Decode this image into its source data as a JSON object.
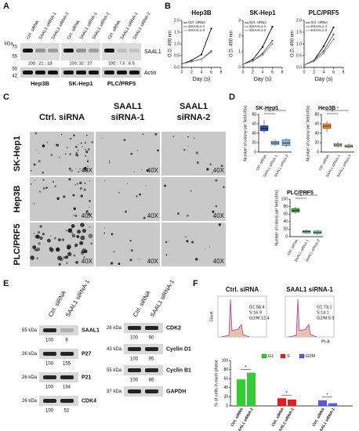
{
  "panels": {
    "A": {
      "label": "A",
      "kda": "kDa",
      "markers": [
        "70",
        "55",
        "50",
        "42"
      ],
      "lanes": [
        "Ctrl. siRNA",
        "SAAL1 siRNA-1",
        "SAAL1 siRNA-2"
      ],
      "cells": [
        "Hep3B",
        "SK-Hep1",
        "PLC/PRF5"
      ],
      "ratios": [
        "100 : 21 : 18",
        "100: 32 : 27",
        "100 : 7.6 : 6.5"
      ],
      "bands": [
        "SAAL1",
        "Actin"
      ]
    },
    "B": {
      "label": "B",
      "charts": [
        {
          "type": "line",
          "title": "Hep3B",
          "ylabel": "O.D. 490 nm",
          "xlabel": "Day (s)",
          "x": [
            0,
            2,
            4,
            6
          ],
          "xlim": [
            0,
            8
          ],
          "xticks": [
            0,
            2,
            4,
            6,
            8
          ],
          "ylim": [
            0,
            2
          ],
          "yticks": [
            {
              "value": 0,
              "label": "0.0"
            },
            {
              "value": 0.5,
              "label": "0.5"
            },
            {
              "value": 1,
              "label": "1.0"
            },
            {
              "value": 1.5,
              "label": "1.5"
            },
            {
              "value": 2,
              "label": "2.0"
            }
          ],
          "series": [
            {
              "name": "Ctrl. siRNA",
              "color": "#000000",
              "values": [
                0.15,
                0.3,
                0.55,
                1.65
              ]
            },
            {
              "name": "siSAAL1-1",
              "color": "#555555",
              "values": [
                0.15,
                0.25,
                0.35,
                0.7
              ]
            },
            {
              "name": "siSAAL1-2",
              "color": "#888888",
              "values": [
                0.15,
                0.25,
                0.35,
                0.65
              ]
            }
          ]
        },
        {
          "type": "line",
          "title": "SK-Hep1",
          "ylabel": "O.D. 490 nm",
          "xlabel": "Day (s)",
          "x": [
            0,
            2,
            4,
            6
          ],
          "xlim": [
            0,
            8
          ],
          "xticks": [
            0,
            2,
            4,
            6,
            8
          ],
          "ylim": [
            0,
            3
          ],
          "yticks": [
            0,
            1,
            2,
            3
          ],
          "series": [
            {
              "name": "Ctrl. siRNA",
              "color": "#000000",
              "values": [
                0.2,
                0.5,
                1.3,
                2.6
              ]
            },
            {
              "name": "siSAAL1-1",
              "color": "#555555",
              "values": [
                0.2,
                0.4,
                0.9,
                1.7
              ]
            },
            {
              "name": "siSAAL1-2",
              "color": "#888888",
              "values": [
                0.2,
                0.4,
                0.8,
                1.5
              ]
            }
          ]
        },
        {
          "type": "line",
          "title": "PLC/PRF5",
          "ylabel": "O.D. 490 nm",
          "xlabel": "Day (s)",
          "x": [
            0,
            2,
            4,
            6
          ],
          "xlim": [
            0,
            8
          ],
          "xticks": [
            0,
            2,
            4,
            6,
            8
          ],
          "ylim": [
            0,
            2
          ],
          "yticks": [
            {
              "value": 0,
              "label": "0.0"
            },
            {
              "value": 0.5,
              "label": "0.5"
            },
            {
              "value": 1,
              "label": "1.0"
            },
            {
              "value": 1.5,
              "label": "1.5"
            },
            {
              "value": 2,
              "label": "2.0"
            }
          ],
          "series": [
            {
              "name": "Ctrl. siRNA",
              "color": "#000000",
              "values": [
                0.1,
                0.3,
                0.9,
                1.7
              ]
            },
            {
              "name": "siSAAL1-1",
              "color": "#555555",
              "values": [
                0.1,
                0.3,
                0.7,
                1.4
              ]
            },
            {
              "name": "siSAAL1-2",
              "color": "#888888",
              "values": [
                0.1,
                0.25,
                0.6,
                1.2
              ]
            }
          ]
        }
      ]
    },
    "C": {
      "label": "C",
      "columns": [
        [
          "Ctrl. siRNA"
        ],
        [
          "SAAL1",
          "siRNA-1"
        ],
        [
          "SAAL1",
          "siRNA-2"
        ]
      ],
      "rows": [
        "SK-Hep1",
        "Hep3B",
        "PLC/PRF5"
      ],
      "magnification": "40X"
    },
    "D": {
      "label": "D",
      "charts": [
        {
          "type": "box",
          "title": "SK-Hep1",
          "ylabel": "Number of colony per field (40x)",
          "categories": [
            "Ctrl. siRNA",
            "SAAL1 siRNA-1",
            "SAAL1 siRNA-2"
          ],
          "colors": [
            "#2b4fb5",
            "#7db8e0",
            "#7db8e0"
          ],
          "ylim": [
            0,
            80
          ],
          "yticks": [
            0,
            20,
            40,
            60,
            80
          ],
          "sig": [
            "*",
            "*"
          ],
          "boxes": [
            {
              "min": 40,
              "q1": 45,
              "median": 50,
              "q3": 56,
              "max": 68
            },
            {
              "min": 12,
              "q1": 16,
              "median": 19,
              "q3": 23,
              "max": 26
            },
            {
              "min": 10,
              "q1": 14,
              "median": 19,
              "q3": 26,
              "max": 30
            }
          ]
        },
        {
          "type": "box",
          "title": "Hep3B",
          "ylabel": "Number of colony per field (40x)",
          "categories": [
            "Ctrl. siRNA",
            "SAAL1 siRNA-1",
            "SAAL1 siRNA-2"
          ],
          "colors": [
            "#f08a24",
            "#e3c9ad",
            "#e3c9ad"
          ],
          "ylim": [
            0,
            80
          ],
          "yticks": [
            0,
            20,
            40,
            60,
            80
          ],
          "sig": [
            "*",
            "*"
          ],
          "boxes": [
            {
              "min": 42,
              "q1": 50,
              "median": 55,
              "q3": 60,
              "max": 66
            },
            {
              "min": 9,
              "q1": 12,
              "median": 15,
              "q3": 18,
              "max": 22
            },
            {
              "min": 8,
              "q1": 10,
              "median": 12,
              "q3": 15,
              "max": 18
            }
          ]
        },
        {
          "type": "box",
          "title": "PLC/PRF5",
          "ylabel": "Number of colony per field (40x)",
          "categories": [
            "Ctrl. siRNA",
            "SAAL1 siRNA-1",
            "SAAL1 siRNA-2"
          ],
          "colors": [
            "#3cb43c",
            "#6ec9b5",
            "#6ec9b5"
          ],
          "ylim": [
            0,
            100
          ],
          "yticks": [
            0,
            20,
            40,
            60,
            80,
            100
          ],
          "sig": [
            "*",
            "*"
          ],
          "boxes": [
            {
              "min": 60,
              "q1": 65,
              "median": 70,
              "q3": 75,
              "max": 80
            },
            {
              "min": 8,
              "q1": 10,
              "median": 13,
              "q3": 16,
              "max": 19
            },
            {
              "min": 5,
              "q1": 8,
              "median": 11,
              "q3": 15,
              "max": 18
            }
          ]
        }
      ]
    },
    "E": {
      "label": "E",
      "lanes": [
        "Ctrl. siRNA",
        "SAAL1 siRNA-1"
      ],
      "left": [
        {
          "marker": "55 kDa",
          "protein": "SAAL1",
          "ratios": [
            100,
            6
          ]
        },
        {
          "marker": "26 kDa",
          "protein": "P27",
          "ratios": [
            100,
            155
          ]
        },
        {
          "marker": "26 kDa",
          "protein": "P21",
          "ratios": [
            100,
            194
          ]
        },
        {
          "marker": "26 kDa",
          "protein": "CDK4",
          "ratios": [
            100,
            52
          ]
        }
      ],
      "right": [
        {
          "marker": "26 kDa",
          "protein": "CDK2",
          "ratios": [
            100,
            90
          ]
        },
        {
          "marker": "43 kDa",
          "protein": "Cyclin D1",
          "ratios": [
            100,
            95
          ]
        },
        {
          "marker": "55 kDa",
          "protein": "Cyclin B1",
          "ratios": [
            100,
            86
          ]
        },
        {
          "marker": "37 kDa",
          "protein": "GAPDH"
        }
      ]
    },
    "F": {
      "label": "F",
      "flow": [
        {
          "title": "Ctrl. siRNA",
          "stats": [
            "G1:58.4",
            "S:16.9",
            "G2/M:12.4"
          ]
        },
        {
          "title": "SAAL1 siRNA-1",
          "stats": [
            "G1:73.1",
            "S:14.1",
            "G2/M:5.9"
          ]
        }
      ],
      "flow_ylabel": "Count",
      "flow_xlabel": "PI-A",
      "chart": {
        "type": "bar",
        "ylabel": "% of cells in each phase",
        "categories": [
          "Ctrl. siRNA",
          "SAAL1 siRNA-1"
        ],
        "ylim": [
          0,
          100
        ],
        "yticks": [
          0,
          20,
          40,
          60,
          80,
          100
        ],
        "sig": [
          "*",
          "*",
          "*"
        ],
        "series": [
          {
            "name": "G1",
            "color": "#33cc33",
            "values": [
              58.4,
              73.1
            ]
          },
          {
            "name": "S",
            "color": "#e02020",
            "values": [
              16.9,
              14.1
            ]
          },
          {
            "name": "G2M",
            "color": "#5a5ad0",
            "values": [
              12.4,
              5.9
            ]
          }
        ]
      }
    }
  }
}
